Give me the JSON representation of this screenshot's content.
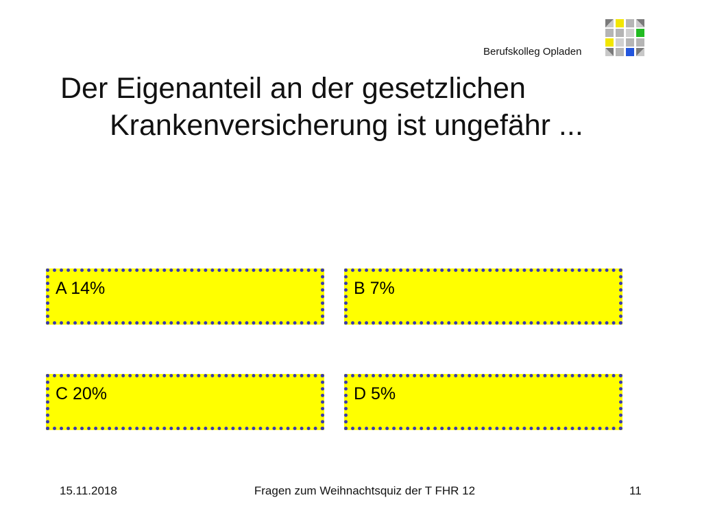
{
  "header": {
    "brand": "Berufskolleg Opladen",
    "logo_colors": {
      "yellow": "#f2e600",
      "green": "#22bb22",
      "blue": "#2255dd",
      "gray": "#b5b5b5"
    }
  },
  "question": {
    "line1": "Der Eigenanteil an der gesetzlichen",
    "line2": "Krankenversicherung ist ungefähr ..."
  },
  "answers": [
    {
      "label": "A  14%"
    },
    {
      "label": "B  7%"
    },
    {
      "label": "C  20%"
    },
    {
      "label": "D 5%"
    }
  ],
  "answer_style": {
    "fill": "#ffff00",
    "border": "#3a3ab0"
  },
  "footer": {
    "date": "15.11.2018",
    "title": "Fragen zum Weihnachtsquiz der T FHR 12",
    "page": "11"
  }
}
